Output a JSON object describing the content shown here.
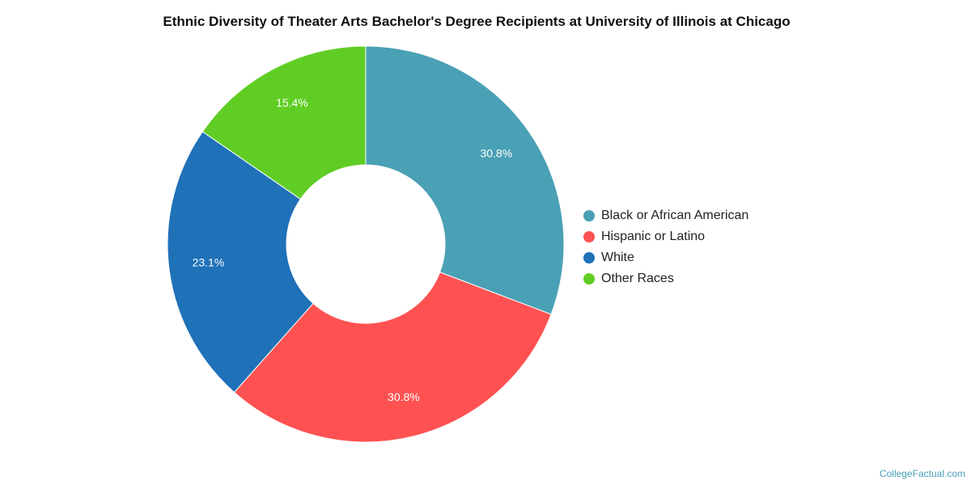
{
  "chart_data": {
    "type": "pie",
    "title": "Ethnic Diversity of Theater Arts Bachelor's Degree Recipients at University of Illinois at Chicago",
    "categories": [
      "Black or African American",
      "Hispanic or Latino",
      "White",
      "Other Races"
    ],
    "values": [
      30.8,
      30.8,
      23.1,
      15.4
    ],
    "data_labels": [
      "30.8%",
      "30.8%",
      "23.1%",
      "15.4%"
    ],
    "colors": [
      "#4aa0b5",
      "#fe5252",
      "#1f71b8",
      "#60cd24"
    ],
    "donut": true,
    "legend_position": "right"
  },
  "source": "CollegeFactual.com"
}
